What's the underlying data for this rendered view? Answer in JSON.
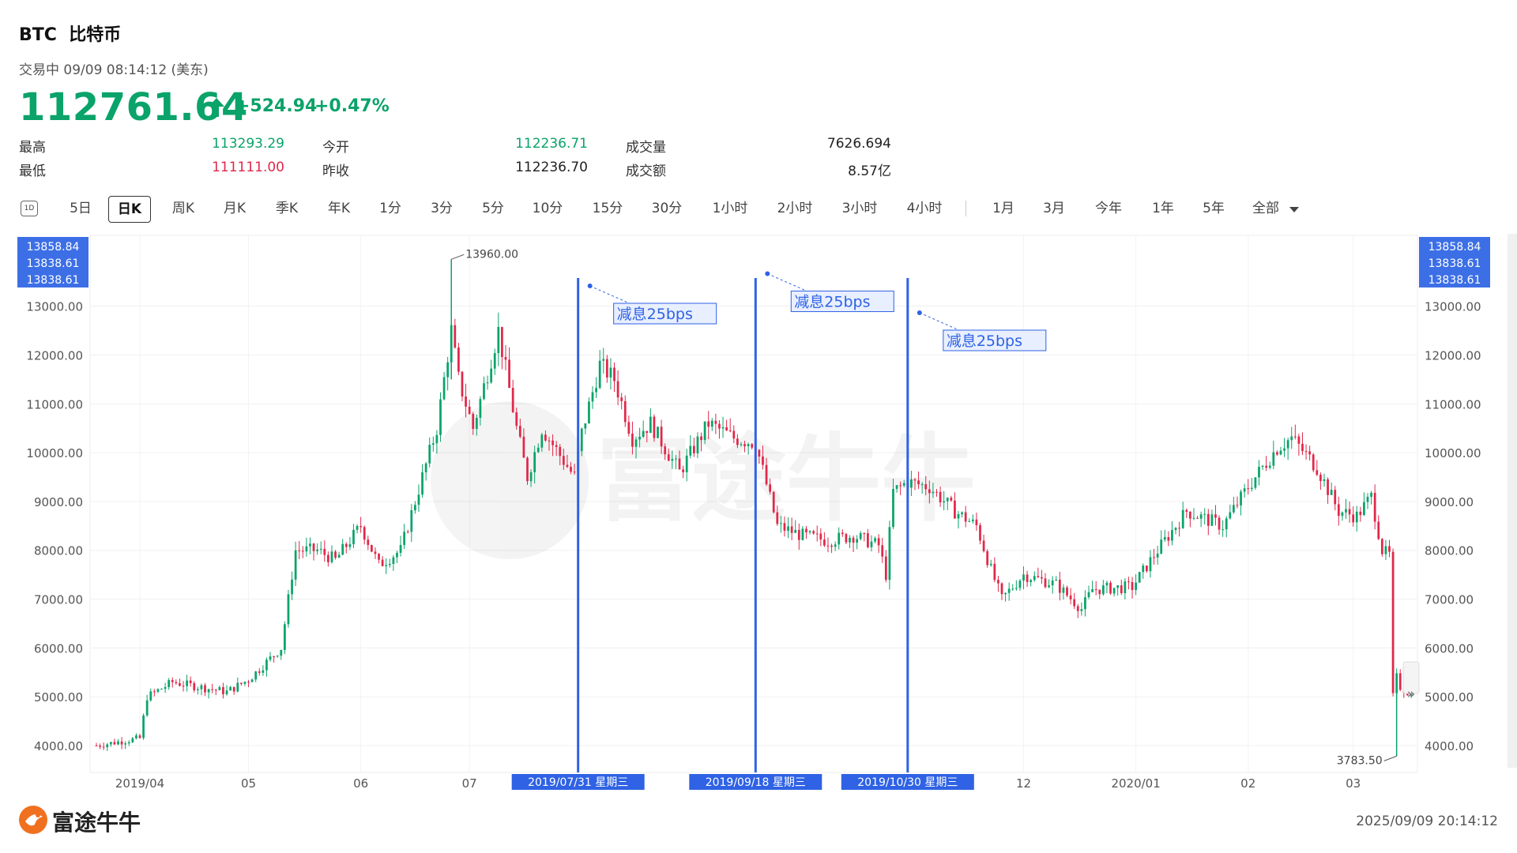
{
  "header": {
    "symbol": "BTC",
    "name": "比特币",
    "status": "交易中 09/09 08:14:12 (美东)",
    "price": "112761.64",
    "change": "+524.94",
    "change_pct": "+0.47%",
    "price_color": "#0aa36a"
  },
  "stats": [
    {
      "label": "最高",
      "value": "113293.29",
      "tone": "green"
    },
    {
      "label": "今开",
      "value": "112236.71",
      "tone": "green"
    },
    {
      "label": "成交量",
      "value": "7626.694",
      "tone": "black"
    },
    {
      "label": "最低",
      "value": "111111.00",
      "tone": "red"
    },
    {
      "label": "昨收",
      "value": "112236.70",
      "tone": "black"
    },
    {
      "label": "成交额",
      "value": "8.57亿",
      "tone": "black"
    }
  ],
  "toolbar": {
    "icon_label": "1D",
    "items": [
      "5日",
      "日K",
      "周K",
      "月K",
      "季K",
      "年K",
      "1分",
      "3分",
      "5分",
      "10分",
      "15分",
      "30分",
      "1小时",
      "2小时",
      "3小时",
      "4小时",
      "1月",
      "3月",
      "今年",
      "1年",
      "5年",
      "全部"
    ],
    "active": "日K"
  },
  "chart_data": {
    "type": "candlestick",
    "y_ticks": [
      4000,
      5000,
      6000,
      7000,
      8000,
      9000,
      10000,
      11000,
      12000,
      13000
    ],
    "y_tick_labels": [
      "4000.00",
      "5000.00",
      "6000.00",
      "7000.00",
      "8000.00",
      "9000.00",
      "10000.00",
      "11000.00",
      "12000.00",
      "13000.00"
    ],
    "ylim": [
      3450,
      14450
    ],
    "x_tick_labels": [
      {
        "label": "2019/04",
        "date": "2019-04-01"
      },
      {
        "label": "05",
        "date": "2019-05-01"
      },
      {
        "label": "06",
        "date": "2019-06-01"
      },
      {
        "label": "07",
        "date": "2019-07-01"
      },
      {
        "label": "12",
        "date": "2019-12-01"
      },
      {
        "label": "2020/01",
        "date": "2020-01-01"
      },
      {
        "label": "02",
        "date": "2020-02-01"
      },
      {
        "label": "03",
        "date": "2020-03-01"
      }
    ],
    "x_range": [
      "2019-03-20",
      "2020-03-17"
    ],
    "top_left_labels": [
      "13858.84",
      "13838.61",
      "13838.61"
    ],
    "top_right_labels": [
      "13858.84",
      "13838.61",
      "13838.61"
    ],
    "max_label": "13960.00",
    "max_point": {
      "date": "2019-06-26",
      "value": 13960
    },
    "min_label": "3783.50",
    "min_point": {
      "date": "2020-03-13",
      "value": 3783.5
    },
    "events": [
      {
        "date": "2019-07-31",
        "date_label": "2019/07/31 星期三",
        "note": "减息25bps"
      },
      {
        "date": "2019-09-18",
        "date_label": "2019/09/18 星期三",
        "note": "减息25bps"
      },
      {
        "date": "2019-10-30",
        "date_label": "2019/10/30 星期三",
        "note": "减息25bps"
      }
    ],
    "up_color": "#0aa36a",
    "down_color": "#e0284a",
    "event_line_color": "#2f62e4",
    "watermark": "富途牛牛",
    "key_points": [
      [
        "2019-03-20",
        4000
      ],
      [
        "2019-04-01",
        4150
      ],
      [
        "2019-04-03",
        5000
      ],
      [
        "2019-04-10",
        5300
      ],
      [
        "2019-04-25",
        5100
      ],
      [
        "2019-05-01",
        5350
      ],
      [
        "2019-05-10",
        6000
      ],
      [
        "2019-05-14",
        8000
      ],
      [
        "2019-05-20",
        8000
      ],
      [
        "2019-05-25",
        7800
      ],
      [
        "2019-06-01",
        8500
      ],
      [
        "2019-06-06",
        7700
      ],
      [
        "2019-06-12",
        8000
      ],
      [
        "2019-06-16",
        9000
      ],
      [
        "2019-06-22",
        10500
      ],
      [
        "2019-06-26",
        12500
      ],
      [
        "2019-06-28",
        11500
      ],
      [
        "2019-07-02",
        10500
      ],
      [
        "2019-07-09",
        12500
      ],
      [
        "2019-07-14",
        10500
      ],
      [
        "2019-07-17",
        9500
      ],
      [
        "2019-07-21",
        10500
      ],
      [
        "2019-07-30",
        9500
      ],
      [
        "2019-08-01",
        10400
      ],
      [
        "2019-08-06",
        11800
      ],
      [
        "2019-08-10",
        11500
      ],
      [
        "2019-08-15",
        10300
      ],
      [
        "2019-08-20",
        10600
      ],
      [
        "2019-08-28",
        9600
      ],
      [
        "2019-09-05",
        10600
      ],
      [
        "2019-09-12",
        10300
      ],
      [
        "2019-09-18",
        10200
      ],
      [
        "2019-09-24",
        8500
      ],
      [
        "2019-10-01",
        8300
      ],
      [
        "2019-10-08",
        8200
      ],
      [
        "2019-10-15",
        8300
      ],
      [
        "2019-10-22",
        8100
      ],
      [
        "2019-10-24",
        7500
      ],
      [
        "2019-10-26",
        9200
      ],
      [
        "2019-10-30",
        9400
      ],
      [
        "2019-11-05",
        9300
      ],
      [
        "2019-11-12",
        8800
      ],
      [
        "2019-11-18",
        8500
      ],
      [
        "2019-11-22",
        7600
      ],
      [
        "2019-11-25",
        7000
      ],
      [
        "2019-12-01",
        7500
      ],
      [
        "2019-12-10",
        7300
      ],
      [
        "2019-12-17",
        6800
      ],
      [
        "2019-12-20",
        7200
      ],
      [
        "2019-12-31",
        7250
      ],
      [
        "2020-01-07",
        8000
      ],
      [
        "2020-01-15",
        8800
      ],
      [
        "2020-01-25",
        8500
      ],
      [
        "2020-02-01",
        9300
      ],
      [
        "2020-02-09",
        10100
      ],
      [
        "2020-02-13",
        10300
      ],
      [
        "2020-02-20",
        9700
      ],
      [
        "2020-02-26",
        8800
      ],
      [
        "2020-03-02",
        8700
      ],
      [
        "2020-03-06",
        9100
      ],
      [
        "2020-03-09",
        8000
      ],
      [
        "2020-03-11",
        7900
      ],
      [
        "2020-03-12",
        5000
      ],
      [
        "2020-03-13",
        5400
      ],
      [
        "2020-03-14",
        5200
      ],
      [
        "2020-03-16",
        5100
      ],
      [
        "2020-03-17",
        5300
      ]
    ]
  },
  "footer": {
    "brand": "富途牛牛",
    "timestamp": "2025/09/09 20:14:12"
  }
}
